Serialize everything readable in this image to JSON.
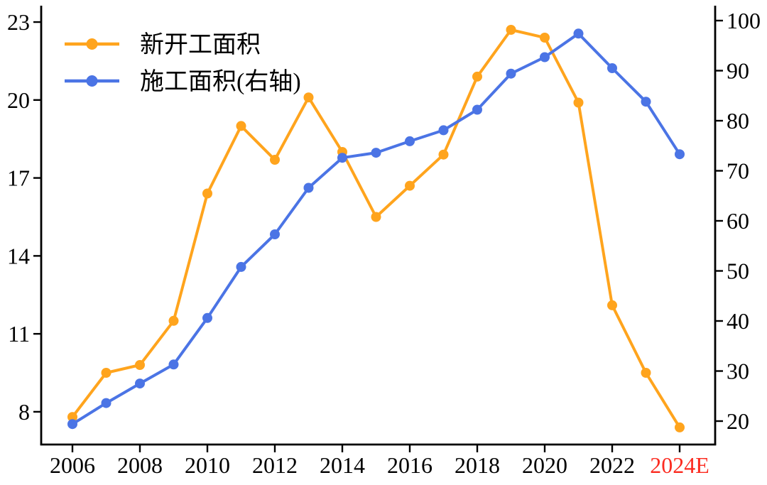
{
  "chart_data": {
    "type": "line",
    "title": "",
    "xlabel": "",
    "ylabel_left": "",
    "ylabel_right": "",
    "grid": false,
    "background_color": "#ffffff",
    "axis_color": "#000000",
    "categories": [
      "2006",
      "2007",
      "2008",
      "2009",
      "2010",
      "2011",
      "2012",
      "2013",
      "2014",
      "2015",
      "2016",
      "2017",
      "2018",
      "2019",
      "2020",
      "2021",
      "2022",
      "2023",
      "2024E"
    ],
    "series": [
      {
        "name": "新开工面积",
        "axis": "left",
        "color": "#FFA41D",
        "marker": "circle",
        "values": [
          7.8,
          9.5,
          9.8,
          11.5,
          16.4,
          19.0,
          17.7,
          20.1,
          18.0,
          15.5,
          16.7,
          17.9,
          20.9,
          22.7,
          22.4,
          19.9,
          12.1,
          9.5,
          7.4
        ]
      },
      {
        "name": "施工面积(右轴)",
        "axis": "right",
        "color": "#4B74E5",
        "marker": "circle",
        "values": [
          19.4,
          23.6,
          27.5,
          31.3,
          40.6,
          50.8,
          57.3,
          66.6,
          72.6,
          73.6,
          75.9,
          78.1,
          82.2,
          89.4,
          92.7,
          97.4,
          90.5,
          83.8,
          73.3
        ]
      }
    ],
    "left_axis": {
      "ticks": [
        8,
        11,
        14,
        17,
        20,
        23
      ],
      "range": [
        6.74,
        23.63
      ]
    },
    "right_axis": {
      "ticks": [
        20,
        30,
        40,
        50,
        60,
        70,
        80,
        90,
        100
      ],
      "range": [
        15.32,
        102.98
      ]
    },
    "x_axis": {
      "tick_labels": [
        "2006",
        "2008",
        "2010",
        "2012",
        "2014",
        "2016",
        "2018",
        "2020",
        "2022",
        "2024E"
      ],
      "tick_every": 2,
      "label_color": "#000000",
      "last_label_color": "#FB2B20"
    },
    "legend": {
      "position": "top-left",
      "entries": [
        "新开工面积",
        "施工面积(右轴)"
      ]
    }
  }
}
